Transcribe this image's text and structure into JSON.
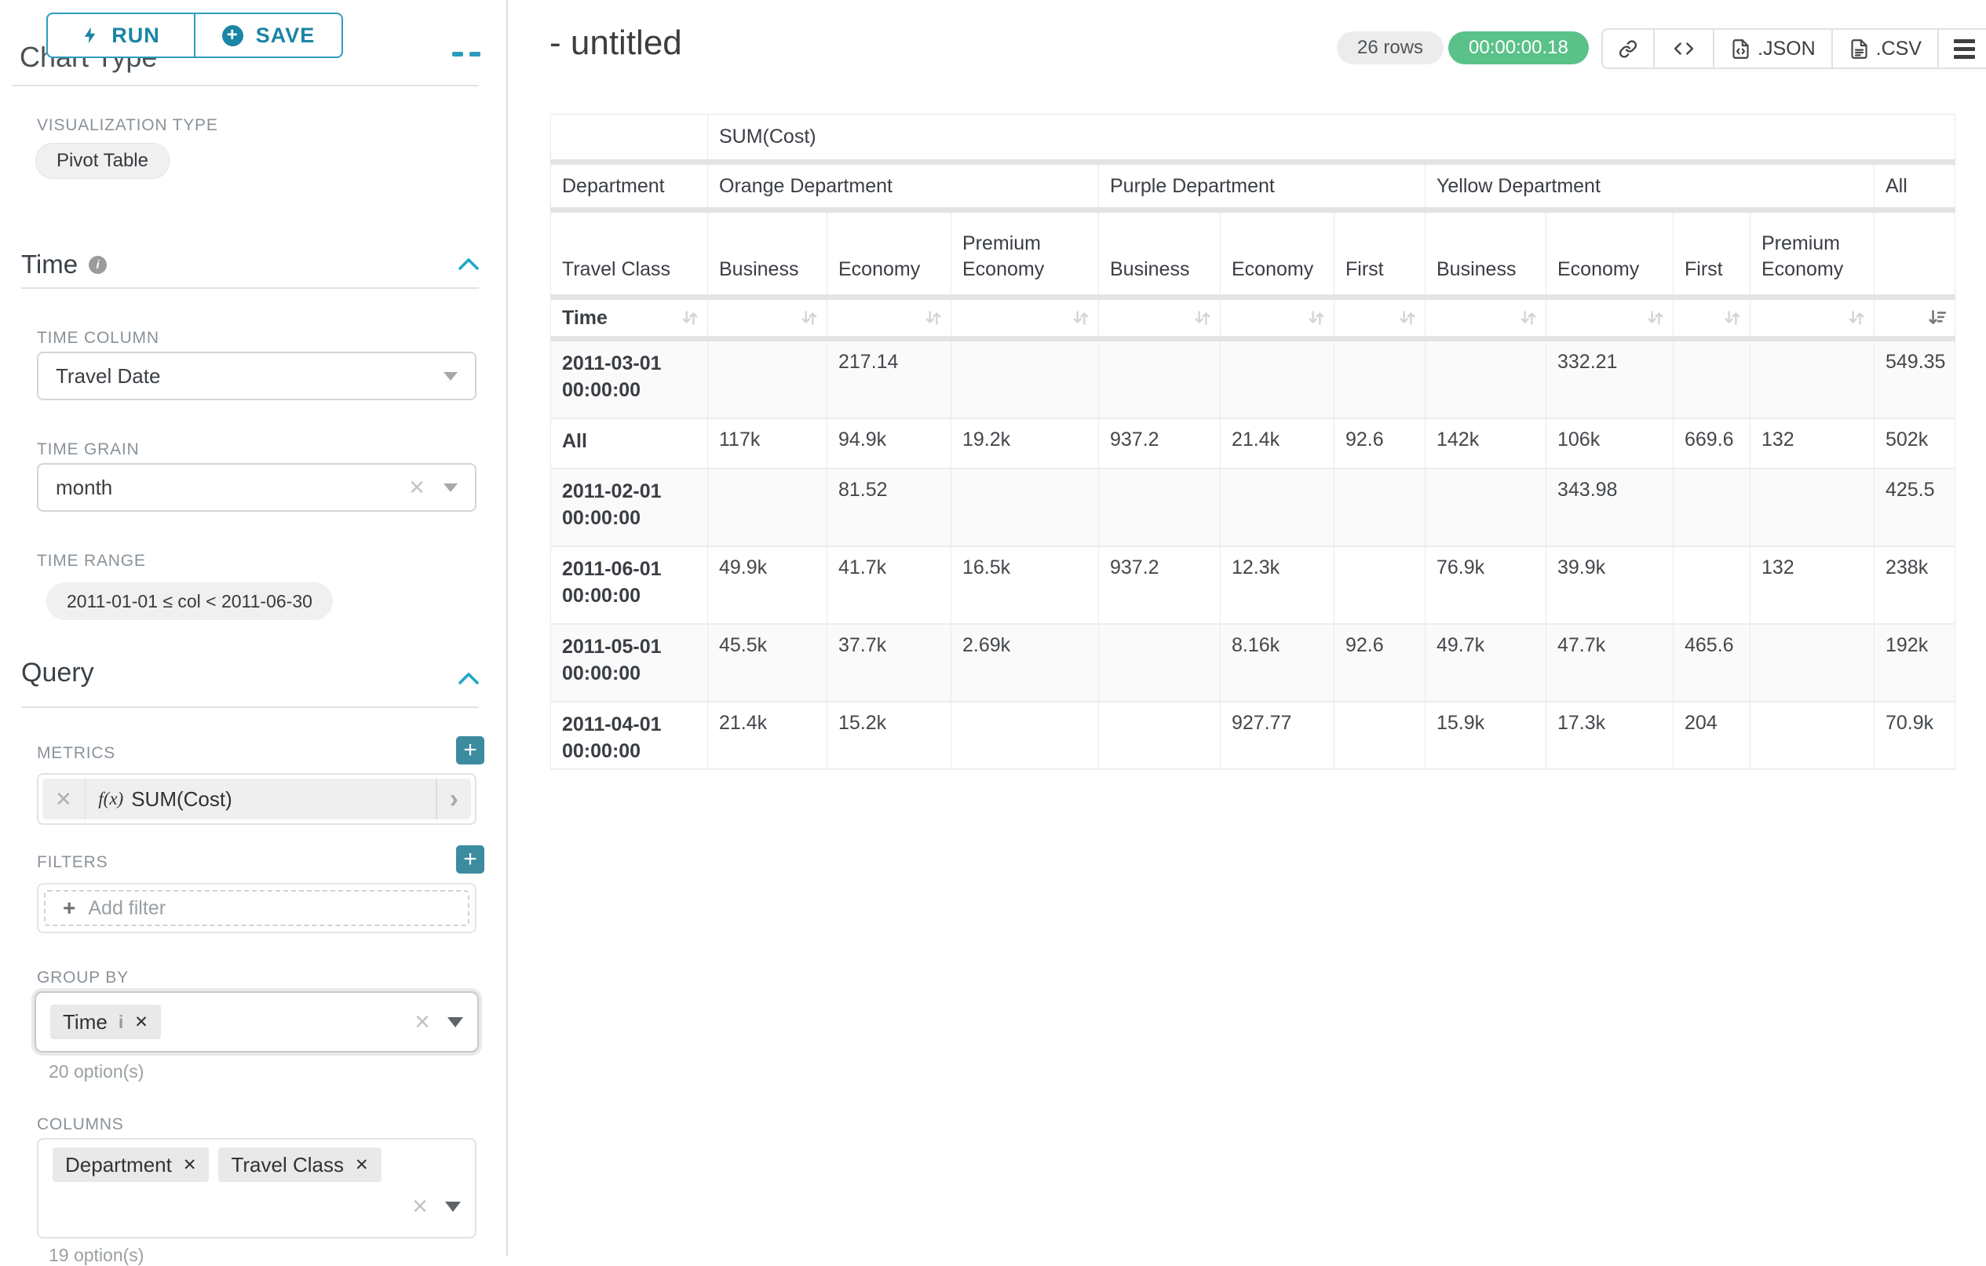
{
  "colors": {
    "accent_teal": "#20a7c9",
    "button_teal": "#1a85a4",
    "add_button_teal": "#3d8b9e",
    "timer_green": "#5ac189",
    "badge_gray": "#ececec",
    "zebra_gray": "#fafafa"
  },
  "sidebar": {
    "run_button": "RUN",
    "save_button": "SAVE",
    "chart_type_heading": "Chart Type",
    "visualization_type_label": "VISUALIZATION TYPE",
    "visualization_type_value": "Pivot Table",
    "time": {
      "title": "Time",
      "time_column_label": "TIME COLUMN",
      "time_column_value": "Travel Date",
      "time_grain_label": "TIME GRAIN",
      "time_grain_value": "month",
      "time_range_label": "TIME RANGE",
      "time_range_value": "2011-01-01 ≤ col < 2011-06-30"
    },
    "query": {
      "title": "Query",
      "metrics_label": "METRICS",
      "metric_fn": "f(x)",
      "metric_value": "SUM(Cost)",
      "filters_label": "FILTERS",
      "add_filter_label": "Add filter",
      "group_by_label": "GROUP BY",
      "group_by_values": [
        {
          "label": "Time",
          "info": true
        }
      ],
      "group_by_options_hint": "20 option(s)",
      "columns_label": "COLUMNS",
      "columns_values": [
        {
          "label": "Department"
        },
        {
          "label": "Travel Class"
        }
      ],
      "columns_options_hint": "19 option(s)"
    }
  },
  "header": {
    "title": "- untitled",
    "rows_badge": "26 rows",
    "timer_badge": "00:00:00.18",
    "export_json_label": ".JSON",
    "export_csv_label": ".CSV"
  },
  "chart_data": {
    "type": "table",
    "metric_header": "SUM(Cost)",
    "corner_row2_label": "Department",
    "corner_row3_label": "Travel Class",
    "row_axis_label": "Time",
    "sorted_column": "All",
    "column_groups": [
      {
        "name": "Orange Department",
        "cols": [
          "Business",
          "Economy",
          "Premium Economy"
        ]
      },
      {
        "name": "Purple Department",
        "cols": [
          "Business",
          "Economy",
          "First"
        ]
      },
      {
        "name": "Yellow Department",
        "cols": [
          "Business",
          "Economy",
          "First",
          "Premium Economy"
        ]
      },
      {
        "name": "All",
        "cols": [
          ""
        ]
      }
    ],
    "rows": [
      {
        "label": "2011-03-01 00:00:00",
        "values": [
          "",
          "217.14",
          "",
          "",
          "",
          "",
          "",
          "332.21",
          "",
          "",
          "549.35"
        ]
      },
      {
        "label": "All",
        "values": [
          "117k",
          "94.9k",
          "19.2k",
          "937.2",
          "21.4k",
          "92.6",
          "142k",
          "106k",
          "669.6",
          "132",
          "502k"
        ]
      },
      {
        "label": "2011-02-01 00:00:00",
        "values": [
          "",
          "81.52",
          "",
          "",
          "",
          "",
          "",
          "343.98",
          "",
          "",
          "425.5"
        ]
      },
      {
        "label": "2011-06-01 00:00:00",
        "values": [
          "49.9k",
          "41.7k",
          "16.5k",
          "937.2",
          "12.3k",
          "",
          "76.9k",
          "39.9k",
          "",
          "132",
          "238k"
        ]
      },
      {
        "label": "2011-05-01 00:00:00",
        "values": [
          "45.5k",
          "37.7k",
          "2.69k",
          "",
          "8.16k",
          "92.6",
          "49.7k",
          "47.7k",
          "465.6",
          "",
          "192k"
        ]
      },
      {
        "label": "2011-04-01 00:00:00",
        "values": [
          "21.4k",
          "15.2k",
          "",
          "",
          "927.77",
          "",
          "15.9k",
          "17.3k",
          "204",
          "",
          "70.9k"
        ]
      }
    ]
  }
}
